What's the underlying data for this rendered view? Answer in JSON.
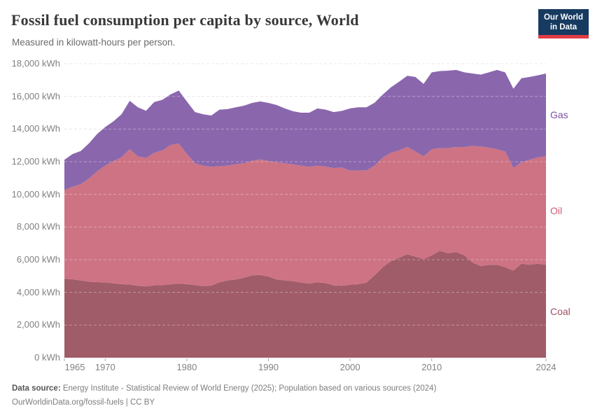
{
  "header": {
    "title": "Fossil fuel consumption per capita by source, World",
    "subtitle": "Measured in kilowatt-hours per person.",
    "logo_line1": "Our World",
    "logo_line2": "in Data",
    "logo_bg_color": "#173a60",
    "logo_accent_color": "#e23b45"
  },
  "chart_data": {
    "type": "area",
    "stacked": true,
    "title": "Fossil fuel consumption per capita by source, World",
    "unit": "kWh per person",
    "ylabel": "",
    "xlabel": "",
    "ylim": [
      0,
      18000
    ],
    "ytick_step": 2000,
    "ytick_suffix": " kWh",
    "grid": "dashed-horizontal",
    "legend_position": "right-edge-labels",
    "xticks": [
      1965,
      1970,
      1980,
      1990,
      2000,
      2010,
      2024
    ],
    "x": [
      1965,
      1966,
      1967,
      1968,
      1969,
      1970,
      1971,
      1972,
      1973,
      1974,
      1975,
      1976,
      1977,
      1978,
      1979,
      1980,
      1981,
      1982,
      1983,
      1984,
      1985,
      1986,
      1987,
      1988,
      1989,
      1990,
      1991,
      1992,
      1993,
      1994,
      1995,
      1996,
      1997,
      1998,
      1999,
      2000,
      2001,
      2002,
      2003,
      2004,
      2005,
      2006,
      2007,
      2008,
      2009,
      2010,
      2011,
      2012,
      2013,
      2014,
      2015,
      2016,
      2017,
      2018,
      2019,
      2020,
      2021,
      2022,
      2023,
      2024
    ],
    "series": [
      {
        "name": "Coal",
        "color": "#a05c68",
        "label_color": "#a04f5f",
        "values": [
          4830,
          4800,
          4730,
          4650,
          4630,
          4610,
          4550,
          4500,
          4480,
          4400,
          4360,
          4430,
          4450,
          4500,
          4540,
          4500,
          4450,
          4380,
          4420,
          4620,
          4730,
          4790,
          4900,
          5040,
          5070,
          4970,
          4790,
          4730,
          4690,
          4600,
          4540,
          4610,
          4570,
          4430,
          4400,
          4470,
          4500,
          4600,
          5040,
          5540,
          5900,
          6120,
          6330,
          6190,
          6040,
          6260,
          6540,
          6400,
          6470,
          6260,
          5830,
          5610,
          5690,
          5690,
          5540,
          5330,
          5760,
          5690,
          5760,
          5690
        ]
      },
      {
        "name": "Oil",
        "color": "#ce7384",
        "label_color": "#cf5b70",
        "values": [
          5430,
          5670,
          5890,
          6320,
          6770,
          7150,
          7490,
          7760,
          8280,
          7930,
          7860,
          8120,
          8240,
          8520,
          8580,
          7970,
          7450,
          7370,
          7270,
          7100,
          7030,
          7060,
          7000,
          7010,
          7070,
          7070,
          7180,
          7170,
          7140,
          7150,
          7150,
          7140,
          7130,
          7180,
          7250,
          6980,
          6970,
          6870,
          6710,
          6710,
          6650,
          6570,
          6570,
          6430,
          6290,
          6500,
          6290,
          6430,
          6430,
          6640,
          7140,
          7320,
          7170,
          7070,
          7080,
          6290,
          6210,
          6430,
          6500,
          6640
        ]
      },
      {
        "name": "Gas",
        "color": "#8a67ad",
        "label_color": "#7a52a1",
        "values": [
          1860,
          2000,
          2030,
          2150,
          2290,
          2360,
          2430,
          2640,
          2970,
          3000,
          2900,
          3100,
          3100,
          3100,
          3240,
          3220,
          3140,
          3150,
          3140,
          3470,
          3460,
          3480,
          3530,
          3550,
          3550,
          3560,
          3500,
          3360,
          3260,
          3250,
          3310,
          3510,
          3490,
          3430,
          3460,
          3810,
          3860,
          3860,
          3860,
          3860,
          4000,
          4210,
          4360,
          4570,
          4430,
          4710,
          4720,
          4740,
          4720,
          4570,
          4430,
          4400,
          4610,
          4860,
          4850,
          4850,
          5140,
          5070,
          5030,
          5070
        ]
      }
    ]
  },
  "footer": {
    "datasource_label": "Data source:",
    "datasource_text": " Energy Institute - Statistical Review of World Energy (2025); Population based on various sources (2024)",
    "link_line": "OurWorldinData.org/fossil-fuels | CC BY"
  }
}
